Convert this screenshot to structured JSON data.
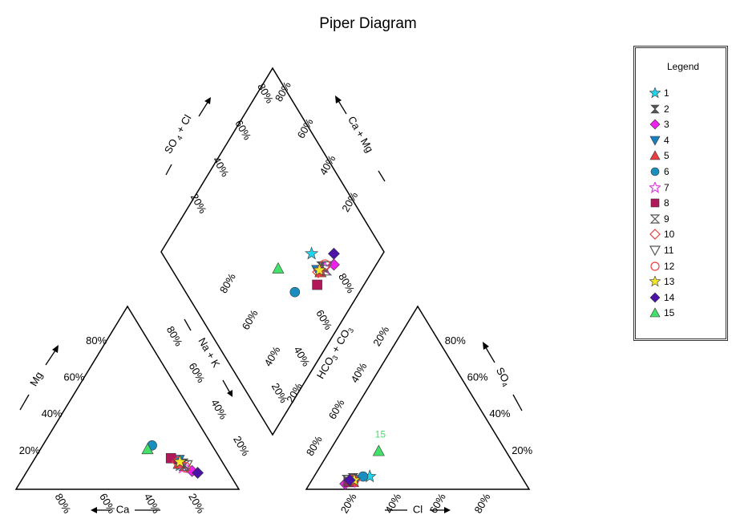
{
  "chart_data": {
    "type": "scatter",
    "title": "Piper Diagram",
    "subtype": "piper",
    "legend_title": "Legend",
    "legend_placement": "right",
    "cation_triangle": {
      "axes": [
        "Mg",
        "Ca"
      ],
      "ticks": [
        "20%",
        "40%",
        "60%",
        "80%"
      ]
    },
    "anion_triangle": {
      "axes": [
        "SO",
        "Cl"
      ],
      "ticks": [
        "20%",
        "40%",
        "60%",
        "80%"
      ]
    },
    "diamond": {
      "axes": [
        "SO",
        "Ca + Mg",
        "Na + K",
        "HCO",
        "CO"
      ],
      "ticks": [
        "20%",
        "40%",
        "60%",
        "80%"
      ]
    },
    "subscripts": [
      "4",
      "3",
      "3"
    ],
    "axis_separator": "+",
    "samples": [
      {
        "name": "1",
        "ca": 20,
        "mg": 13,
        "cl": 25,
        "so4": 7,
        "color": "#22d3ee",
        "marker": "star"
      },
      {
        "name": "2",
        "ca": 18,
        "mg": 14,
        "cl": 18,
        "so4": 6,
        "color": "#555555",
        "marker": "hourglass"
      },
      {
        "name": "3",
        "ca": 16,
        "mg": 10,
        "cl": 16,
        "so4": 3,
        "color": "#ee22ee",
        "marker": "diamond"
      },
      {
        "name": "4",
        "ca": 19,
        "mg": 16,
        "cl": 20,
        "so4": 5,
        "color": "#1a7fbf",
        "marker": "triangle-down"
      },
      {
        "name": "5",
        "ca": 20,
        "mg": 14,
        "cl": 19,
        "so4": 4,
        "color": "#e84040",
        "marker": "triangle"
      },
      {
        "name": "6",
        "ca": 27,
        "mg": 24,
        "cl": 22,
        "so4": 7,
        "color": "#1a8fbf",
        "marker": "circle"
      },
      {
        "name": "7",
        "ca": 19,
        "mg": 12,
        "cl": 18,
        "so4": 4,
        "color": "#e040e0",
        "marker": "star-open"
      },
      {
        "name": "8",
        "ca": 22,
        "mg": 17,
        "cl": 17,
        "so4": 4,
        "color": "#b0185a",
        "marker": "square"
      },
      {
        "name": "9",
        "ca": 18,
        "mg": 13,
        "cl": 16,
        "so4": 5,
        "color": "#555555",
        "marker": "hourglass-open"
      },
      {
        "name": "10",
        "ca": 20,
        "mg": 15,
        "cl": 19,
        "so4": 5,
        "color": "#e84040",
        "marker": "diamond-open"
      },
      {
        "name": "11",
        "ca": 17,
        "mg": 13,
        "cl": 17,
        "so4": 5,
        "color": "#555555",
        "marker": "triangle-down-open"
      },
      {
        "name": "12",
        "ca": 18,
        "mg": 12,
        "cl": 18,
        "so4": 5,
        "color": "#e84040",
        "marker": "circle-open"
      },
      {
        "name": "13",
        "ca": 19,
        "mg": 15,
        "cl": 19,
        "so4": 5,
        "color": "#f5e62a",
        "marker": "star"
      },
      {
        "name": "14",
        "ca": 14,
        "mg": 9,
        "cl": 17,
        "so4": 5,
        "color": "#4b13a8",
        "marker": "diamond"
      },
      {
        "name": "15",
        "ca": 30,
        "mg": 22,
        "cl": 22,
        "so4": 21,
        "color": "#44e06a",
        "marker": "triangle"
      }
    ],
    "annotation": {
      "text": "15",
      "color": "#44e06a"
    }
  }
}
